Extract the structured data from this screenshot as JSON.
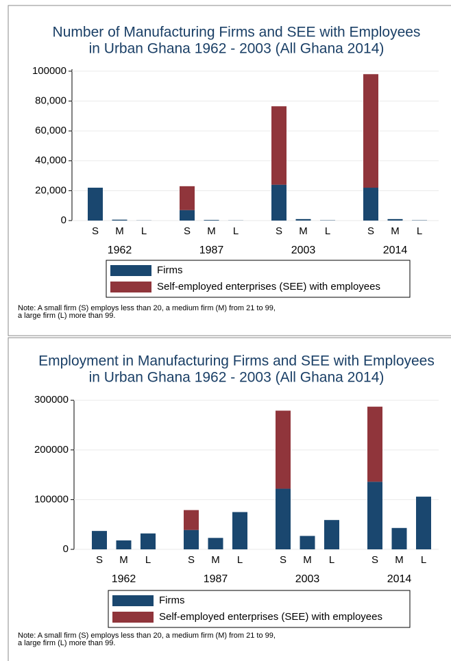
{
  "chart_data": [
    {
      "type": "stacked-bar",
      "title": [
        "Number of Manufacturing Firms and SEE with Employees",
        "in Urban Ghana 1962 - 2003 (All Ghana 2014)"
      ],
      "categories": [
        "S",
        "M",
        "L",
        "S",
        "M",
        "L",
        "S",
        "M",
        "L",
        "S",
        "M",
        "L"
      ],
      "groups": [
        "1962",
        "1987",
        "2003",
        "2014"
      ],
      "series": [
        {
          "name": "Firms",
          "color": "#1a476f",
          "values": [
            22000,
            600,
            100,
            7000,
            400,
            100,
            24000,
            1000,
            200,
            22000,
            1000,
            200
          ]
        },
        {
          "name": "Self-employed enterprises (SEE) with employees",
          "color": "#90353b",
          "values": [
            0,
            0,
            0,
            16000,
            0,
            0,
            52500,
            0,
            0,
            76000,
            0,
            0
          ]
        }
      ],
      "ylim": [
        0,
        105000
      ],
      "yticks": [
        0,
        {
          "value": 20000,
          "label": "20,000"
        },
        {
          "value": 40000,
          "label": "40,000"
        },
        {
          "value": 60000,
          "label": "60,000"
        },
        {
          "value": 80000,
          "label": "80,000"
        },
        100000
      ],
      "grid": true,
      "note": [
        "Note: A small firm (S) employs less than 20, a medium firm (M) from  21 to 99,",
        "a large firm (L) more than 99."
      ]
    },
    {
      "type": "stacked-bar",
      "title": [
        "Employment in Manufacturing Firms and SEE with Employees",
        "in Urban Ghana 1962 - 2003 (All Ghana 2014)"
      ],
      "categories": [
        "S",
        "M",
        "L",
        "S",
        "M",
        "L",
        "S",
        "M",
        "L",
        "S",
        "M",
        "L"
      ],
      "groups": [
        "1962",
        "1987",
        "2003",
        "2014"
      ],
      "series": [
        {
          "name": "Firms",
          "color": "#1a476f",
          "values": [
            37000,
            18000,
            32000,
            39000,
            23000,
            75000,
            122000,
            27000,
            59000,
            136000,
            43000,
            106000
          ]
        },
        {
          "name": "Self-employed enterprises (SEE) with employees",
          "color": "#90353b",
          "values": [
            0,
            0,
            0,
            40000,
            0,
            0,
            157000,
            0,
            0,
            151000,
            0,
            0
          ]
        }
      ],
      "ylim": [
        0,
        310000
      ],
      "yticks": [
        0,
        100000,
        200000,
        300000
      ],
      "grid": true,
      "note": [
        "Note: A small firm (S) employs less than 20, a medium firm (M) from  21 to 99,",
        "a large firm (L) more than 99."
      ]
    }
  ]
}
